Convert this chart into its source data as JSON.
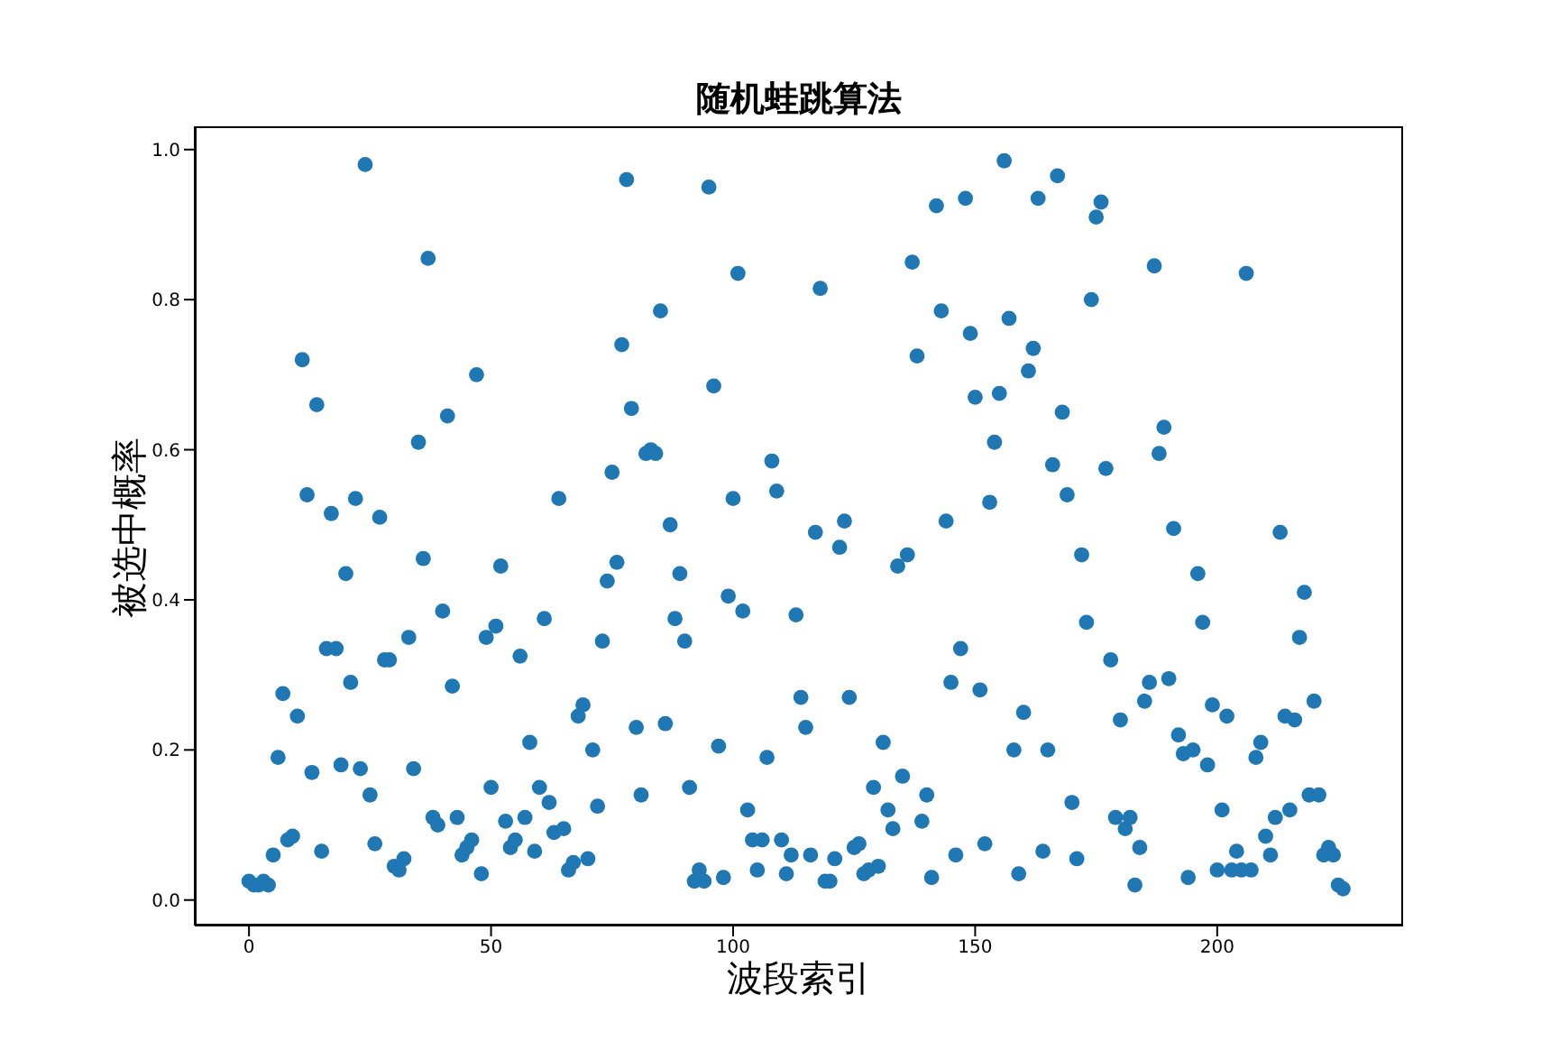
{
  "chart_data": {
    "type": "scatter",
    "title": "随机蛙跳算法",
    "xlabel": "波段索引",
    "ylabel": "被选中概率",
    "x": [
      0,
      1,
      2,
      3,
      4,
      5,
      6,
      7,
      8,
      9,
      10,
      11,
      12,
      13,
      14,
      15,
      16,
      17,
      18,
      19,
      20,
      21,
      22,
      23,
      24,
      25,
      26,
      27,
      28,
      29,
      30,
      31,
      32,
      33,
      34,
      35,
      36,
      37,
      38,
      39,
      40,
      41,
      42,
      43,
      44,
      45,
      46,
      47,
      48,
      49,
      50,
      51,
      52,
      53,
      54,
      55,
      56,
      57,
      58,
      59,
      60,
      61,
      62,
      63,
      64,
      65,
      66,
      67,
      68,
      69,
      70,
      71,
      72,
      73,
      74,
      75,
      76,
      77,
      78,
      79,
      80,
      81,
      82,
      83,
      84,
      85,
      86,
      87,
      88,
      89,
      90,
      91,
      92,
      93,
      94,
      95,
      96,
      97,
      98,
      99,
      100,
      101,
      102,
      103,
      104,
      105,
      106,
      107,
      108,
      109,
      110,
      111,
      112,
      113,
      114,
      115,
      116,
      117,
      118,
      119,
      120,
      121,
      122,
      123,
      124,
      125,
      126,
      127,
      128,
      129,
      130,
      131,
      132,
      133,
      134,
      135,
      136,
      137,
      138,
      139,
      140,
      141,
      142,
      143,
      144,
      145,
      146,
      147,
      148,
      149,
      150,
      151,
      152,
      153,
      154,
      155,
      156,
      157,
      158,
      159,
      160,
      161,
      162,
      163,
      164,
      165,
      166,
      167,
      168,
      169,
      170,
      171,
      172,
      173,
      174,
      175,
      176,
      177,
      178,
      179,
      180,
      181,
      182,
      183,
      184,
      185,
      186,
      187,
      188,
      189,
      190,
      191,
      192,
      193,
      194,
      195,
      196,
      197,
      198,
      199,
      200,
      201,
      202,
      203,
      204,
      205,
      206,
      207,
      208,
      209,
      210,
      211,
      212,
      213,
      214,
      215,
      216,
      217,
      218,
      219,
      220,
      221,
      222,
      223,
      224,
      225,
      226
    ],
    "series": [
      {
        "color": "#1f77b4",
        "values": [
          0.025,
          0.02,
          0.02,
          0.025,
          0.02,
          0.06,
          0.19,
          0.275,
          0.08,
          0.085,
          0.245,
          0.72,
          0.54,
          0.17,
          0.66,
          0.065,
          0.335,
          0.515,
          0.335,
          0.18,
          0.435,
          0.29,
          0.535,
          0.175,
          0.98,
          0.14,
          0.075,
          0.51,
          0.32,
          0.32,
          0.045,
          0.04,
          0.055,
          0.35,
          0.175,
          0.61,
          0.455,
          0.855,
          0.11,
          0.1,
          0.385,
          0.645,
          0.285,
          0.11,
          0.06,
          0.07,
          0.08,
          0.7,
          0.035,
          0.35,
          0.15,
          0.365,
          0.445,
          0.105,
          0.07,
          0.08,
          0.325,
          0.11,
          0.21,
          0.065,
          0.15,
          0.375,
          0.13,
          0.09,
          0.535,
          0.095,
          0.04,
          0.05,
          0.245,
          0.26,
          0.055,
          0.2,
          0.125,
          0.345,
          0.425,
          0.57,
          0.45,
          0.74,
          0.96,
          0.655,
          0.23,
          0.14,
          0.595,
          0.6,
          0.595,
          0.785,
          0.235,
          0.5,
          0.375,
          0.435,
          0.345,
          0.15,
          0.025,
          0.04,
          0.025,
          0.95,
          0.685,
          0.205,
          0.03,
          0.405,
          0.535,
          0.835,
          0.385,
          0.12,
          0.08,
          0.04,
          0.08,
          0.19,
          0.585,
          0.545,
          0.08,
          0.035,
          0.06,
          0.38,
          0.27,
          0.23,
          0.06,
          0.49,
          0.815,
          0.025,
          0.025,
          0.055,
          0.47,
          0.505,
          0.27,
          0.07,
          0.075,
          0.035,
          0.04,
          0.15,
          0.045,
          0.21,
          0.12,
          0.095,
          0.445,
          0.165,
          0.46,
          0.85,
          0.725,
          0.105,
          0.14,
          0.03,
          0.925,
          0.785,
          0.505,
          0.29,
          0.06,
          0.335,
          0.935,
          0.755,
          0.67,
          0.28,
          0.075,
          0.53,
          0.61,
          0.675,
          0.985,
          0.775,
          0.2,
          0.035,
          0.25,
          0.705,
          0.735,
          0.935,
          0.065,
          0.2,
          0.58,
          0.965,
          0.65,
          0.54,
          0.13,
          0.055,
          0.46,
          0.37,
          0.8,
          0.91,
          0.93,
          0.575,
          0.32,
          0.11,
          0.24,
          0.095,
          0.11,
          0.02,
          0.07,
          0.265,
          0.29,
          0.845,
          0.595,
          0.63,
          0.295,
          0.495,
          0.22,
          0.195,
          0.03,
          0.2,
          0.435,
          0.37,
          0.18,
          0.26,
          0.04,
          0.12,
          0.245,
          0.04,
          0.065,
          0.04,
          0.835,
          0.04,
          0.19,
          0.21,
          0.085,
          0.06,
          0.11,
          0.49,
          0.245,
          0.12,
          0.24,
          0.35,
          0.41,
          0.14,
          0.265,
          0.14,
          0.06,
          0.07,
          0.06,
          0.02,
          0.015
        ]
      }
    ],
    "xlim": [
      -11.2,
      238.4
    ],
    "xticks": [
      0,
      50,
      100,
      150,
      200
    ],
    "ylim": [
      -0.034,
      1.031
    ],
    "yticks": [
      {
        "value": 0,
        "label": "0.0"
      },
      {
        "value": 0.2,
        "label": "0.2"
      },
      {
        "value": 0.4,
        "label": "0.4"
      },
      {
        "value": 0.6,
        "label": "0.6"
      },
      {
        "value": 0.8,
        "label": "0.8"
      },
      {
        "value": 1,
        "label": "1.0"
      }
    ],
    "marker": "circle"
  }
}
